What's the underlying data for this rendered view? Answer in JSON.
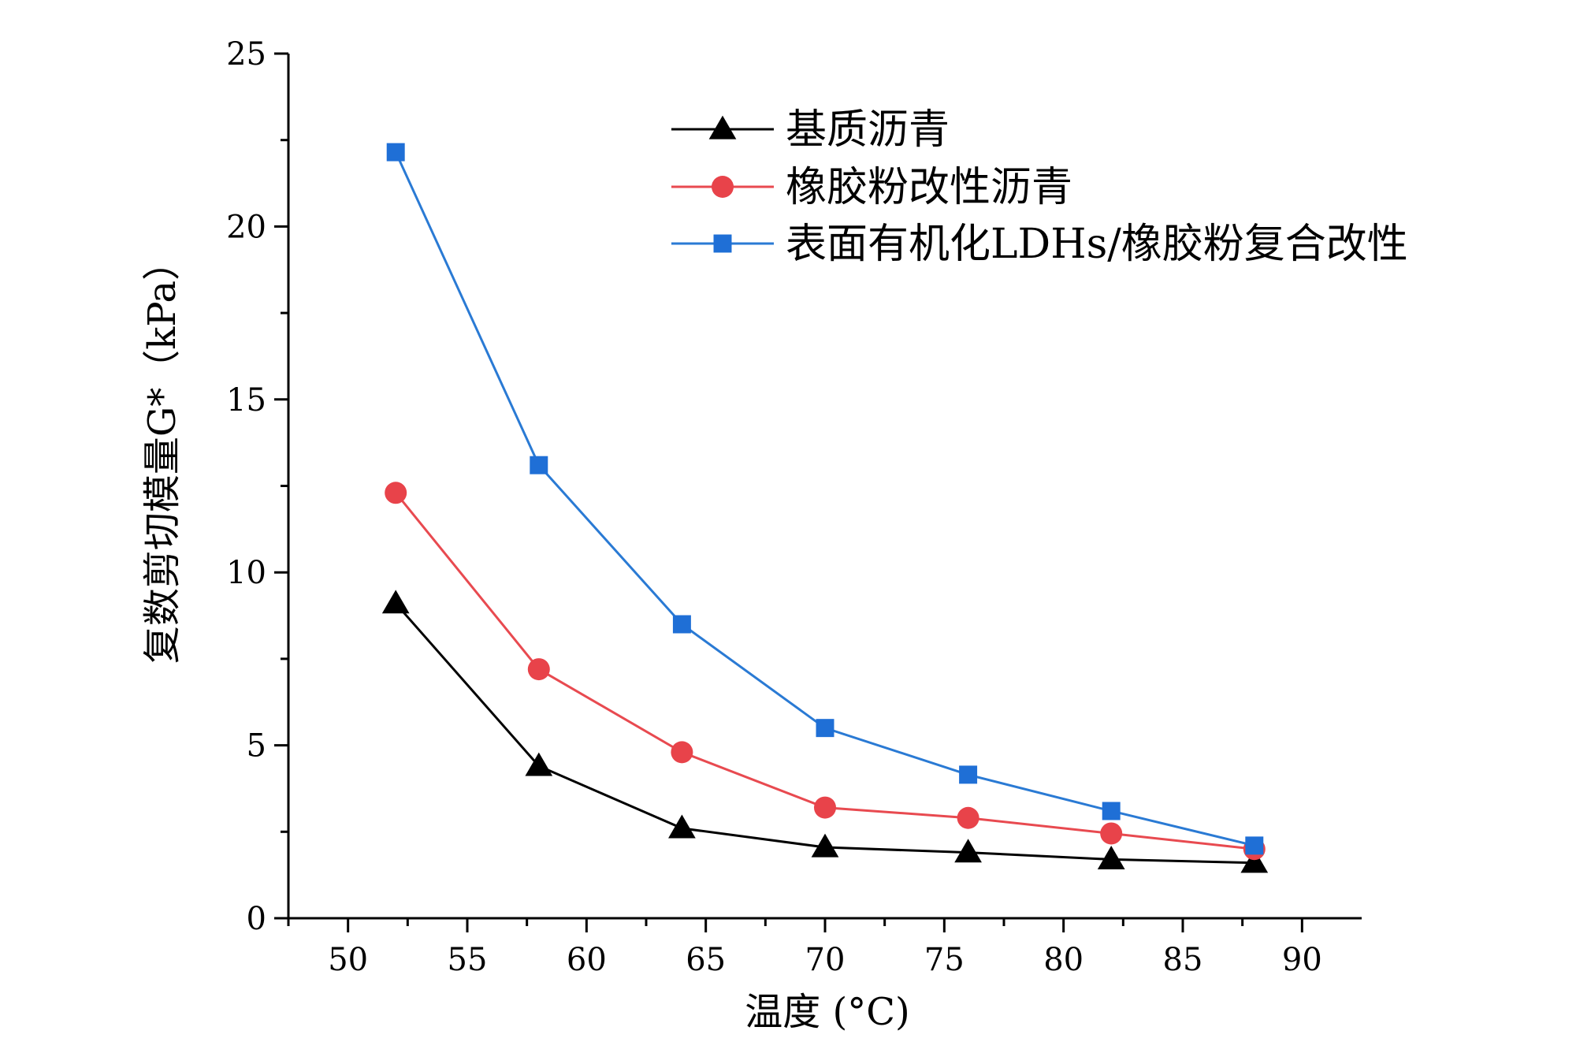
{
  "chart_data": {
    "type": "line",
    "title": "",
    "xlabel": "温度 (°C)",
    "ylabel": "复数剪切模量G*（kPa）",
    "xlim": [
      47.5,
      92.5
    ],
    "ylim": [
      0,
      25
    ],
    "x_ticks": [
      50,
      55,
      60,
      65,
      70,
      75,
      80,
      85,
      90
    ],
    "x_tick_labels": [
      "50",
      "55",
      "60",
      "65",
      "70",
      "75",
      "80",
      "85",
      "90"
    ],
    "y_ticks": [
      0,
      5,
      10,
      15,
      20,
      25
    ],
    "y_tick_labels": [
      "0",
      "5",
      "10",
      "15",
      "20",
      "25"
    ],
    "grid": false,
    "legend_position": "top-right",
    "x": [
      52,
      58,
      64,
      70,
      76,
      82,
      88
    ],
    "series": [
      {
        "name": "基质沥青",
        "marker": "triangle",
        "color": "#000000",
        "values": [
          9.1,
          4.4,
          2.6,
          2.05,
          1.9,
          1.7,
          1.6
        ]
      },
      {
        "name": "橡胶粉改性沥青",
        "marker": "circle",
        "color": "#e8434a",
        "line_color": "#e84a50",
        "values": [
          12.3,
          7.2,
          4.8,
          3.2,
          2.9,
          2.45,
          2.0
        ]
      },
      {
        "name": "表面有机化LDHs/橡胶粉复合改性",
        "marker": "square",
        "color": "#1f6fd6",
        "line_color": "#2a7ad4",
        "values": [
          22.15,
          13.1,
          8.5,
          5.5,
          4.15,
          3.1,
          2.1
        ]
      }
    ]
  }
}
